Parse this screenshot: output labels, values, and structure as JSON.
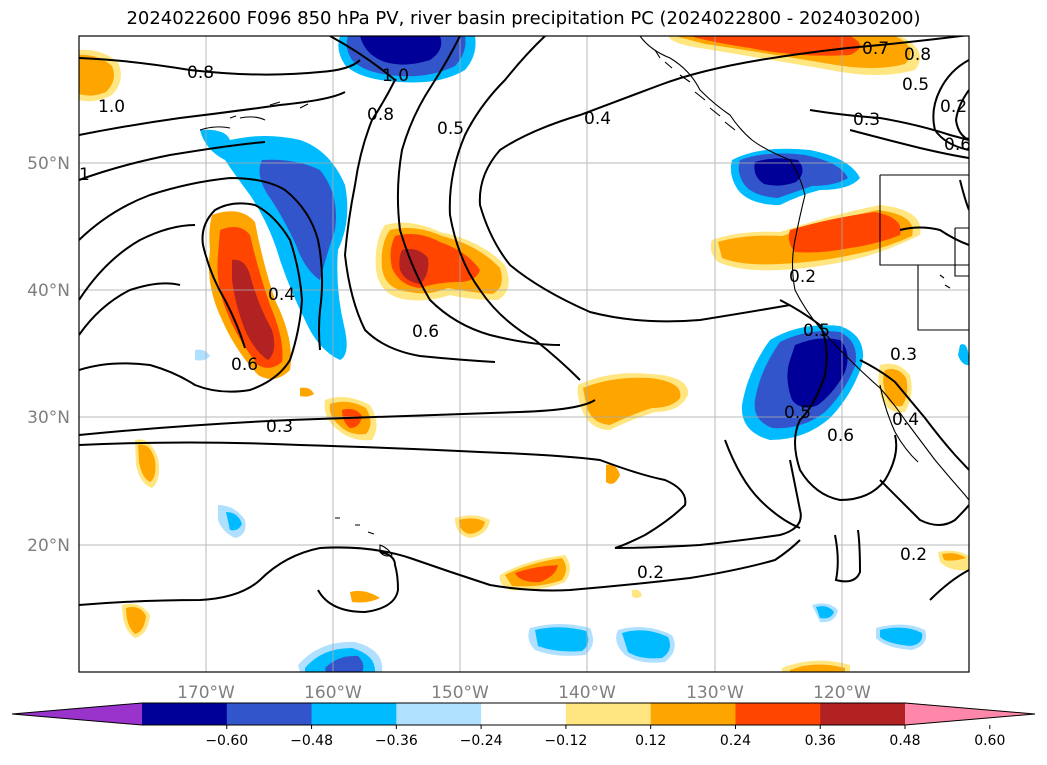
{
  "title": "2024022600 F096 850 hPa PV, river basin precipitation PC (2024022800 - 2024030200)",
  "map": {
    "projection": "PlateCarree",
    "lon_range": [
      -180,
      -110
    ],
    "lat_range": [
      10,
      60
    ],
    "gridlines": true,
    "lon_tick_labels": [
      "170°W",
      "160°W",
      "150°W",
      "140°W",
      "130°W",
      "120°W"
    ],
    "lat_tick_labels": [
      "50°N",
      "40°N",
      "30°N",
      "20°N"
    ],
    "pv_contour_labels": [
      "0.8",
      "1.0",
      "0.8",
      "0.5",
      "0.4",
      "0.7",
      "0.8",
      "0.5",
      "0.3",
      "1.0",
      "0.6",
      "1",
      "0.4",
      "0.6",
      "0.6",
      "0.2",
      "0.5",
      "0.5",
      "0.6",
      "0.3",
      "0.2",
      "0.3",
      "0.4",
      "0.2",
      "0.2"
    ]
  },
  "colorbar": {
    "extend": "both",
    "bounds": [
      -0.6,
      -0.48,
      -0.36,
      -0.24,
      -0.12,
      0.12,
      0.24,
      0.36,
      0.48,
      0.6
    ],
    "tick_labels": [
      "−0.60",
      "−0.48",
      "−0.36",
      "−0.24",
      "−0.12",
      "0.12",
      "0.24",
      "0.36",
      "0.48",
      "0.60"
    ],
    "colors": [
      "#9933cc",
      "#000099",
      "#3355cc",
      "#00bbff",
      "#b0e0ff",
      "#ffffff",
      "#ffe680",
      "#ffa500",
      "#ff4500",
      "#b22222",
      "#ff88aa"
    ]
  }
}
